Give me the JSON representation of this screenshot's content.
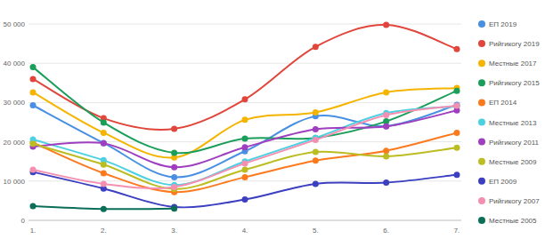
{
  "chart_data": {
    "type": "line",
    "categories": [
      "1.",
      "2.",
      "3.",
      "4.",
      "5.",
      "6.",
      "7."
    ],
    "ylim": [
      0,
      50000
    ],
    "yticks": [
      0,
      {
        "value": 10000,
        "label": "10 000"
      },
      {
        "value": 20000,
        "label": "20 000"
      },
      {
        "value": 30000,
        "label": "30 000"
      },
      {
        "value": 40000,
        "label": "40 000"
      },
      {
        "value": 50000,
        "label": "50 000"
      }
    ],
    "grid": true,
    "legend": "right",
    "marker": "circle",
    "line_style": "smooth",
    "series": [
      {
        "name": "ЕП 2019",
        "color": "#4a90e2",
        "values": [
          29300,
          19700,
          11000,
          17600,
          26500,
          24000,
          29400
        ]
      },
      {
        "name": "Рийгикогу 2019",
        "color": "#e0463b",
        "values": [
          36000,
          26000,
          23300,
          30800,
          44200,
          49800,
          43600
        ]
      },
      {
        "name": "Местные 2017",
        "color": "#f4b400",
        "values": [
          32600,
          22300,
          16000,
          25600,
          27500,
          32600,
          33700
        ]
      },
      {
        "name": "Рийгикогу 2015",
        "color": "#1a9e5a",
        "values": [
          39000,
          24900,
          17200,
          20800,
          21000,
          25200,
          33000
        ]
      },
      {
        "name": "ЕП 2014",
        "color": "#fb7a1e",
        "values": [
          19800,
          12000,
          7200,
          11000,
          15200,
          17700,
          22300
        ]
      },
      {
        "name": "Местные 2013",
        "color": "#4dd0e1",
        "values": [
          20600,
          15300,
          9000,
          15000,
          21000,
          27300,
          29000
        ]
      },
      {
        "name": "Рийгикогу 2011",
        "color": "#a03ec0",
        "values": [
          18800,
          19600,
          13500,
          18600,
          23200,
          23900,
          28000
        ]
      },
      {
        "name": "Местные 2009",
        "color": "#bcbd22",
        "values": [
          19500,
          14200,
          8000,
          12900,
          17400,
          16300,
          18500
        ]
      },
      {
        "name": "ЕП 2009",
        "color": "#3b3fc0",
        "values": [
          12300,
          8100,
          3400,
          5300,
          9300,
          9600,
          11600
        ]
      },
      {
        "name": "Рийгикогу 2007",
        "color": "#f48fb1",
        "values": [
          12900,
          9300,
          8500,
          14500,
          20500,
          26800,
          29200
        ]
      },
      {
        "name": "Местные 2005",
        "color": "#0b6e58",
        "values": [
          3600,
          2900,
          3000,
          null,
          null,
          null,
          null
        ]
      }
    ]
  }
}
